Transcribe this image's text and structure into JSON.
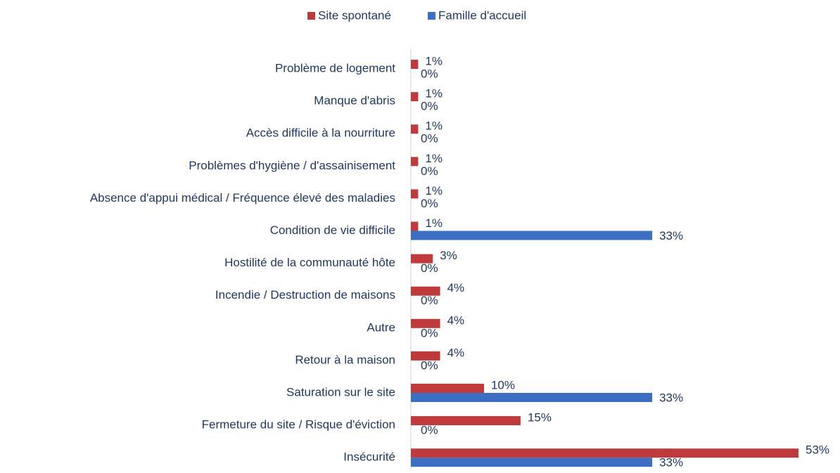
{
  "chart_data": {
    "type": "hbar",
    "categories": [
      "Problème de logement",
      "Manque d'abris",
      "Accès difficile à la nourriture",
      "Problèmes d'hygiène / d'assainisement",
      "Absence d'appui médical / Fréquence élevé des maladies",
      "Condition de vie difficile",
      "Hostilité de la communauté hôte",
      "Incendie / Destruction de maisons",
      "Autre",
      "Retour à la maison",
      "Saturation sur le site",
      "Fermeture du site / Risque d'éviction",
      "Insécurité"
    ],
    "series": [
      {
        "name": "Site spontané",
        "color": "#c0393b",
        "values": [
          1,
          1,
          1,
          1,
          1,
          1,
          3,
          4,
          4,
          4,
          10,
          15,
          53
        ],
        "value_labels": [
          "1%",
          "1%",
          "1%",
          "1%",
          "1%",
          "1%",
          "3%",
          "4%",
          "4%",
          "4%",
          "10%",
          "15%",
          "53%"
        ]
      },
      {
        "name": "Famille d'accueil",
        "color": "#3a6fc4",
        "values": [
          0,
          0,
          0,
          0,
          0,
          33,
          0,
          0,
          0,
          0,
          33,
          0,
          33
        ],
        "value_labels": [
          "0%",
          "0%",
          "0%",
          "0%",
          "0%",
          "33%",
          "0%",
          "0%",
          "0%",
          "0%",
          "33%",
          "0%",
          "33%"
        ]
      }
    ],
    "legend": "top"
  }
}
